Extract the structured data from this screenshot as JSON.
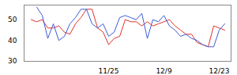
{
  "chart_data": {
    "type": "line",
    "categories": [
      null,
      null,
      null,
      null,
      null,
      null,
      null,
      null,
      null,
      null,
      null,
      null,
      null,
      null,
      "11/25",
      null,
      null,
      null,
      null,
      null,
      null,
      null,
      null,
      null,
      "12/9",
      null,
      null,
      null,
      null,
      null,
      null,
      null,
      null,
      null,
      "12/23",
      null
    ],
    "series": [
      {
        "color": "#e0302a",
        "values": [
          50,
          49,
          50,
          46,
          46,
          47,
          44,
          43,
          48,
          51,
          55,
          55,
          46,
          44,
          38,
          41,
          42,
          50,
          49,
          49,
          47,
          49,
          47,
          48,
          49,
          50,
          47,
          45,
          43,
          43,
          39,
          38,
          37,
          47,
          46,
          45
        ]
      },
      {
        "color": "#3b5bd6",
        "values": [
          null,
          56,
          52,
          41,
          48,
          40,
          42,
          48,
          51,
          55,
          55,
          48,
          46,
          48,
          42,
          44,
          51,
          52,
          51,
          50,
          53,
          41,
          50,
          49,
          52,
          47,
          45,
          42,
          43,
          41,
          40,
          38,
          37,
          37,
          45,
          48
        ]
      }
    ],
    "ylim": [
      30,
      57
    ],
    "yticks": [
      30,
      40,
      50
    ],
    "grid": false
  }
}
